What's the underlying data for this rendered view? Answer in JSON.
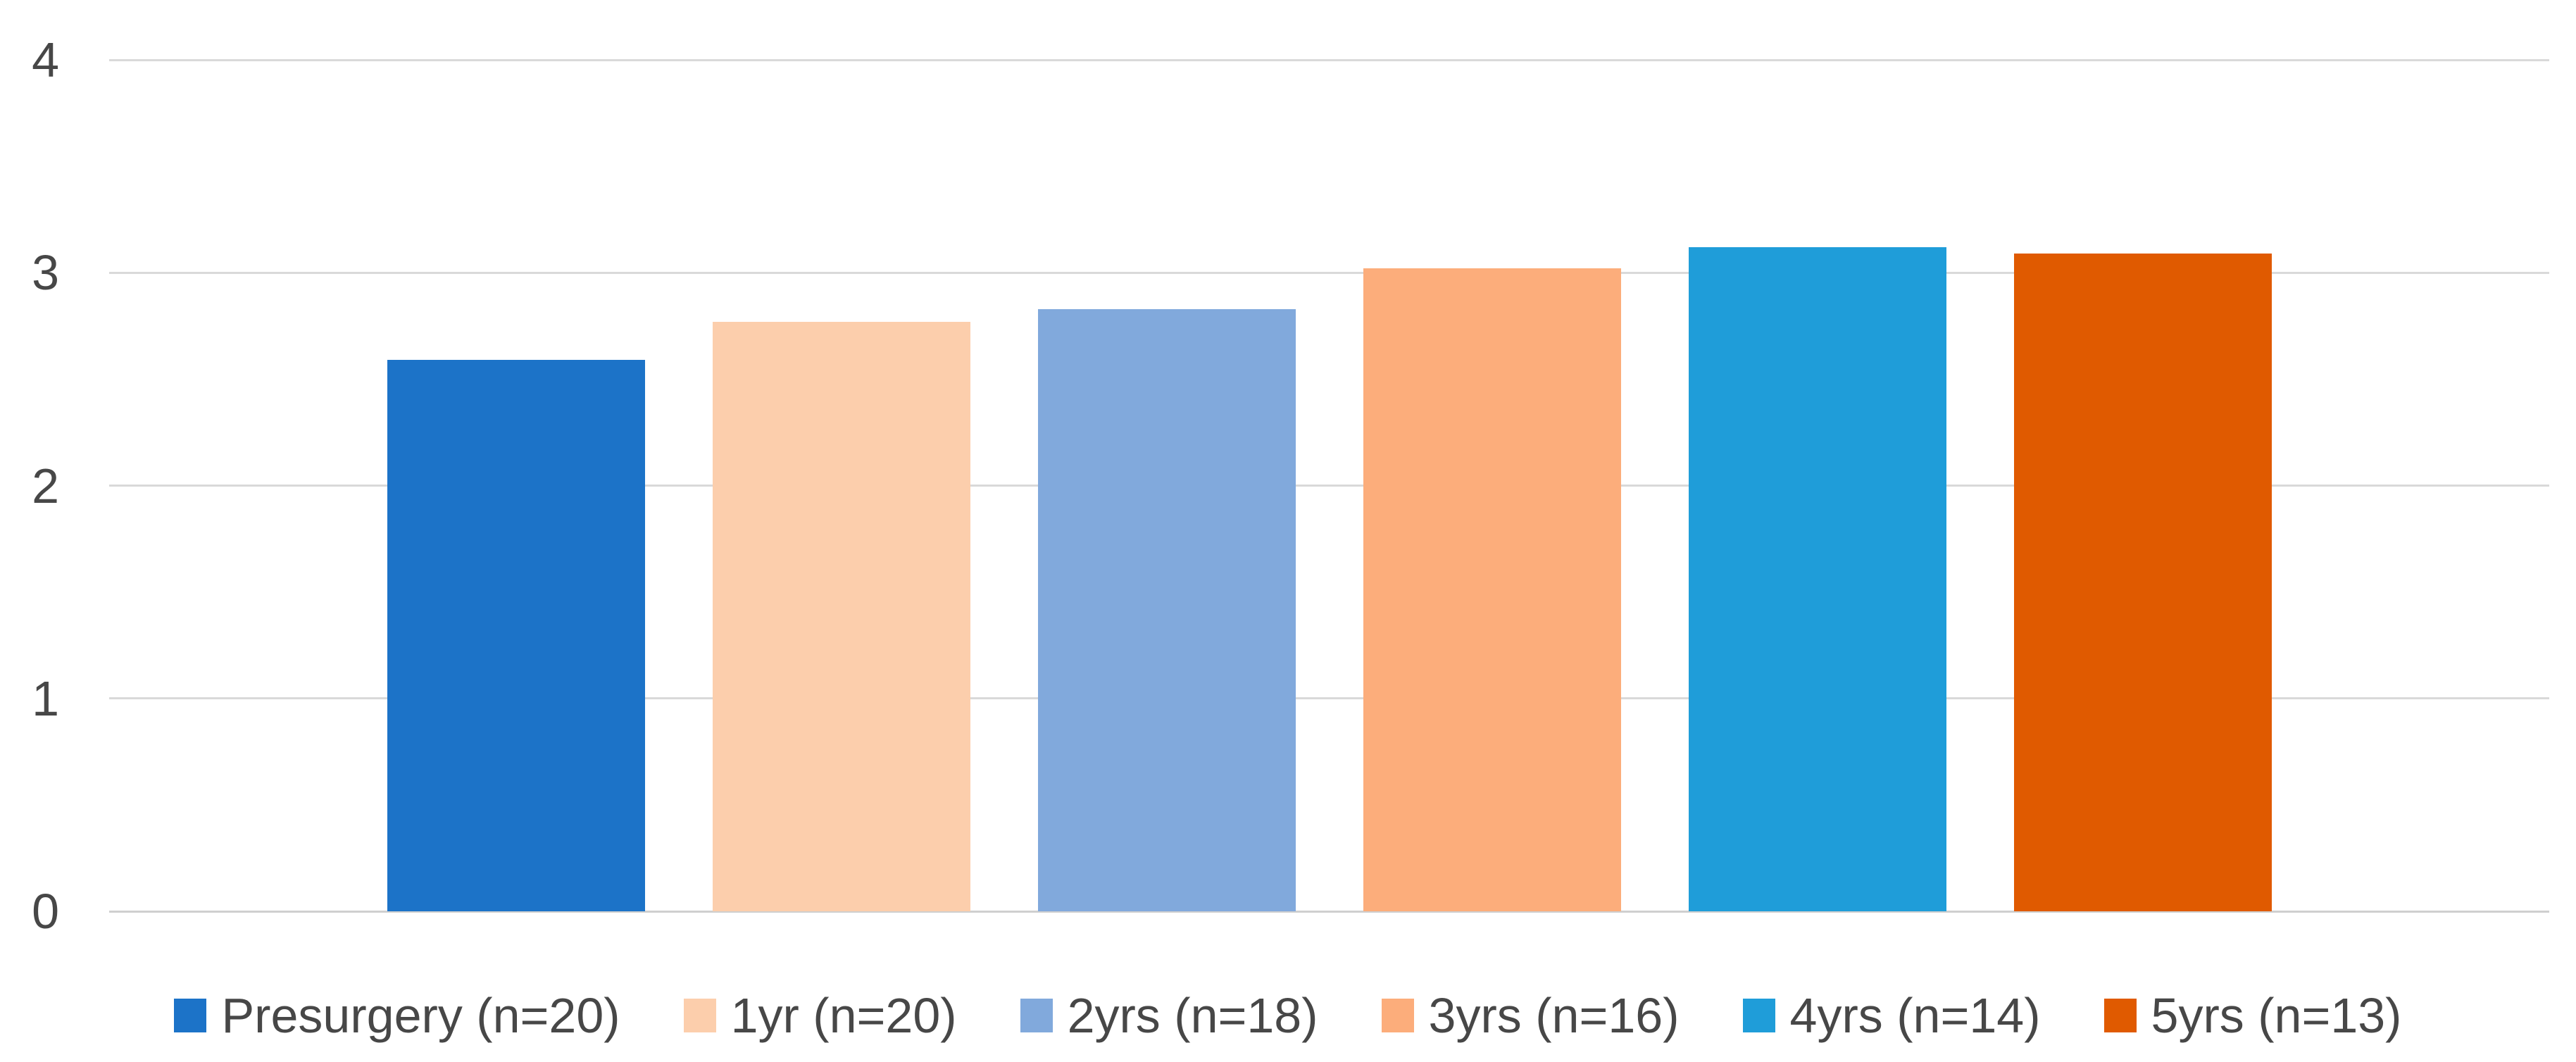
{
  "chart_data": {
    "type": "bar",
    "title": "",
    "xlabel": "",
    "ylabel": "",
    "categories": [
      ""
    ],
    "series": [
      {
        "name": "Presurgery (n=20)",
        "value": 2.59,
        "color": "#1C73C8"
      },
      {
        "name": "1yr (n=20)",
        "value": 2.77,
        "color": "#FCCEAC"
      },
      {
        "name": "2yrs (n=18)",
        "value": 2.83,
        "color": "#81A9DC"
      },
      {
        "name": "3yrs (n=16)",
        "value": 3.02,
        "color": "#FCAD7B"
      },
      {
        "name": "4yrs (n=14)",
        "value": 3.12,
        "color": "#1F9DD9"
      },
      {
        "name": "5yrs (n=13)",
        "value": 3.09,
        "color": "#E05A00"
      }
    ],
    "ylim": [
      0,
      4
    ],
    "yticks": [
      "0",
      "1",
      "2",
      "3",
      "4"
    ],
    "grid": true,
    "legend_position": "bottom"
  },
  "colors": {
    "gridline": "#D9D9D9",
    "axis_line": "#CFCFCF",
    "tick_text": "#474747",
    "legend_text": "#474747",
    "background": "#FFFFFF"
  }
}
